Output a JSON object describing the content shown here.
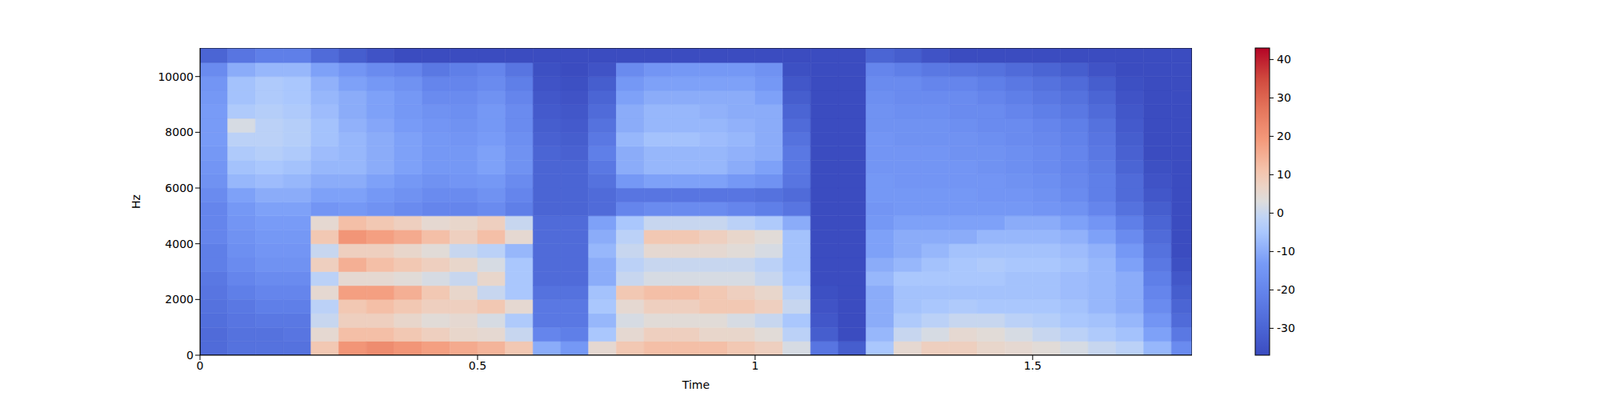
{
  "chart_data": {
    "type": "heatmap",
    "xlabel": "Time",
    "ylabel": "Hz",
    "xlim": [
      0,
      1.787
    ],
    "ylim": [
      0,
      11025
    ],
    "xticks": [
      0,
      0.5,
      1,
      1.5
    ],
    "yticks": [
      0,
      2000,
      4000,
      6000,
      8000,
      10000
    ],
    "time_bins": [
      0,
      0.05,
      0.1,
      0.15,
      0.2,
      0.25,
      0.3,
      0.35,
      0.4,
      0.45,
      0.5,
      0.55,
      0.6,
      0.65,
      0.7,
      0.75,
      0.8,
      0.85,
      0.9,
      0.95,
      1.0,
      1.05,
      1.1,
      1.15,
      1.2,
      1.25,
      1.3,
      1.35,
      1.4,
      1.45,
      1.5,
      1.55,
      1.6,
      1.65,
      1.7,
      1.75,
      1.787
    ],
    "freq_bins": [
      0,
      500,
      1000,
      1500,
      2000,
      2500,
      3000,
      3500,
      4000,
      4500,
      5000,
      5500,
      6000,
      6500,
      7000,
      7500,
      8000,
      8500,
      9000,
      9500,
      10000,
      10500,
      11025
    ],
    "cells": [
      [
        -28,
        -28,
        -27,
        -26,
        -25,
        -24,
        -22,
        -22,
        -20,
        -20,
        -20,
        -18,
        -16,
        -15,
        -14,
        -13,
        -13,
        -13,
        -14,
        -15,
        -18,
        -30
      ],
      [
        -26,
        -26,
        -25,
        -24,
        -22,
        -20,
        -18,
        -17,
        -16,
        -15,
        -14,
        -12,
        -8,
        -6,
        -4,
        -2,
        2,
        -4,
        -6,
        -6,
        -10,
        -25
      ],
      [
        -26,
        -26,
        -24,
        -22,
        -20,
        -18,
        -16,
        -15,
        -14,
        -13,
        -12,
        -10,
        -7,
        -5,
        -3,
        -2,
        -2,
        -3,
        -4,
        -4,
        -8,
        -22
      ],
      [
        -26,
        -25,
        -24,
        -22,
        -20,
        -18,
        -16,
        -15,
        -14,
        -13,
        -12,
        -10,
        -8,
        -6,
        -4,
        -3,
        -3,
        -4,
        -5,
        -5,
        -8,
        -22
      ],
      [
        10,
        5,
        0,
        -2,
        5,
        -2,
        8,
        0,
        10,
        5,
        -15,
        -12,
        -10,
        -8,
        -7,
        -6,
        -6,
        -7,
        -8,
        -9,
        -12,
        -28
      ],
      [
        20,
        12,
        8,
        10,
        18,
        5,
        15,
        8,
        20,
        12,
        -14,
        -12,
        -10,
        -8,
        -8,
        -8,
        -9,
        -10,
        -10,
        -12,
        -15,
        -32
      ],
      [
        22,
        12,
        8,
        12,
        18,
        5,
        12,
        8,
        18,
        10,
        -16,
        -14,
        -12,
        -10,
        -10,
        -10,
        -11,
        -12,
        -12,
        -14,
        -18,
        -35
      ],
      [
        20,
        10,
        6,
        10,
        15,
        4,
        10,
        6,
        16,
        8,
        -18,
        -16,
        -14,
        -12,
        -12,
        -12,
        -13,
        -14,
        -14,
        -16,
        -20,
        -37
      ],
      [
        18,
        8,
        4,
        8,
        10,
        2,
        8,
        4,
        12,
        5,
        -20,
        -18,
        -16,
        -14,
        -14,
        -14,
        -15,
        -16,
        -18,
        -20,
        -24,
        -37
      ],
      [
        16,
        6,
        5,
        8,
        6,
        0,
        6,
        0,
        8,
        6,
        -20,
        -18,
        -15,
        -14,
        -14,
        -15,
        -16,
        -17,
        -18,
        -20,
        -22,
        -37
      ],
      [
        14,
        5,
        2,
        10,
        0,
        6,
        2,
        -2,
        12,
        8,
        -18,
        -16,
        -14,
        -12,
        -12,
        -13,
        -14,
        -14,
        -16,
        -18,
        -20,
        -37
      ],
      [
        10,
        0,
        -4,
        5,
        -5,
        -5,
        -5,
        -8,
        5,
        0,
        -22,
        -20,
        -18,
        -16,
        -16,
        -17,
        -18,
        -18,
        -20,
        -22,
        -25,
        -37
      ],
      [
        -10,
        -20,
        -24,
        -24,
        -26,
        -28,
        -28,
        -28,
        -28,
        -28,
        -30,
        -30,
        -30,
        -30,
        -30,
        -31,
        -32,
        -33,
        -34,
        -35,
        -36,
        -37
      ],
      [
        -14,
        -22,
        -24,
        -24,
        -26,
        -28,
        -28,
        -28,
        -28,
        -28,
        -30,
        -30,
        -30,
        -30,
        -31,
        -32,
        -33,
        -34,
        -35,
        -36,
        -37,
        -37
      ],
      [
        5,
        -5,
        -8,
        -5,
        -6,
        -10,
        -10,
        -8,
        -10,
        -12,
        -28,
        -28,
        -26,
        -24,
        -22,
        -24,
        -26,
        -28,
        -30,
        -32,
        -35,
        -37
      ],
      [
        10,
        5,
        2,
        5,
        10,
        0,
        -2,
        0,
        -2,
        -5,
        -20,
        -25,
        -14,
        -10,
        -10,
        -8,
        -10,
        -10,
        -12,
        -14,
        -18,
        -37
      ],
      [
        12,
        8,
        4,
        8,
        12,
        2,
        0,
        5,
        10,
        0,
        -18,
        -25,
        -12,
        -8,
        -8,
        -6,
        -8,
        -8,
        -10,
        -12,
        -15,
        -37
      ],
      [
        12,
        8,
        4,
        8,
        12,
        2,
        0,
        5,
        10,
        0,
        -18,
        -25,
        -12,
        -8,
        -8,
        -6,
        -8,
        -8,
        -10,
        -12,
        -14,
        -37
      ],
      [
        12,
        6,
        4,
        10,
        10,
        2,
        0,
        5,
        8,
        0,
        -18,
        -25,
        -12,
        -8,
        -8,
        -7,
        -8,
        -9,
        -10,
        -12,
        -14,
        -37
      ],
      [
        10,
        6,
        2,
        10,
        8,
        2,
        0,
        4,
        6,
        -2,
        -20,
        -25,
        -14,
        -10,
        -9,
        -8,
        -9,
        -10,
        -10,
        -12,
        -14,
        -37
      ],
      [
        8,
        4,
        0,
        8,
        6,
        0,
        -2,
        2,
        4,
        -4,
        -22,
        -26,
        -16,
        -12,
        -10,
        -10,
        -10,
        -10,
        -12,
        -14,
        -16,
        -37
      ],
      [
        2,
        -2,
        -5,
        0,
        -2,
        -5,
        -6,
        -6,
        -6,
        -10,
        -25,
        -28,
        -25,
        -24,
        -24,
        -26,
        -28,
        -30,
        -32,
        -34,
        -36,
        -37
      ],
      [
        -25,
        -32,
        -34,
        -35,
        -36,
        -37,
        -37,
        -37,
        -37,
        -37,
        -37,
        -37,
        -37,
        -37,
        -37,
        -37,
        -37,
        -37,
        -37,
        -37,
        -37,
        -37
      ],
      [
        -32,
        -37,
        -37,
        -37,
        -37,
        -37,
        -37,
        -37,
        -37,
        -37,
        -37,
        -37,
        -37,
        -37,
        -37,
        -37,
        -37,
        -37,
        -37,
        -37,
        -37,
        -37
      ],
      [
        -5,
        -8,
        -10,
        -10,
        -10,
        -8,
        -10,
        -12,
        -12,
        -14,
        -15,
        -14,
        -14,
        -15,
        -15,
        -15,
        -16,
        -16,
        -17,
        -18,
        -20,
        -30
      ],
      [
        5,
        0,
        -4,
        -6,
        -6,
        -5,
        -8,
        -10,
        -10,
        -12,
        -14,
        -14,
        -15,
        -15,
        -15,
        -16,
        -16,
        -17,
        -18,
        -18,
        -22,
        -32
      ],
      [
        8,
        2,
        -2,
        -5,
        -6,
        -5,
        -6,
        -8,
        -10,
        -12,
        -14,
        -14,
        -15,
        -15,
        -15,
        -16,
        -16,
        -17,
        -18,
        -20,
        -24,
        -35
      ],
      [
        8,
        5,
        0,
        -4,
        -6,
        -5,
        -5,
        -6,
        -10,
        -12,
        -14,
        -14,
        -15,
        -15,
        -16,
        -16,
        -17,
        -18,
        -18,
        -20,
        -25,
        -37
      ],
      [
        6,
        4,
        0,
        -5,
        -6,
        -5,
        -4,
        -6,
        -8,
        -12,
        -14,
        -15,
        -15,
        -16,
        -16,
        -17,
        -18,
        -18,
        -20,
        -22,
        -26,
        -37
      ],
      [
        5,
        2,
        -2,
        -5,
        -6,
        -6,
        -5,
        -6,
        -8,
        -10,
        -14,
        -15,
        -16,
        -17,
        -17,
        -18,
        -18,
        -20,
        -22,
        -24,
        -28,
        -37
      ],
      [
        4,
        0,
        -3,
        -5,
        -6,
        -6,
        -5,
        -6,
        -8,
        -10,
        -15,
        -16,
        -17,
        -18,
        -18,
        -19,
        -20,
        -22,
        -24,
        -26,
        -30,
        -37
      ],
      [
        2,
        -2,
        -5,
        -6,
        -7,
        -7,
        -6,
        -7,
        -9,
        -12,
        -16,
        -18,
        -19,
        -20,
        -20,
        -21,
        -22,
        -24,
        -26,
        -28,
        -32,
        -37
      ],
      [
        0,
        -4,
        -6,
        -8,
        -8,
        -8,
        -8,
        -9,
        -12,
        -15,
        -20,
        -22,
        -22,
        -23,
        -24,
        -25,
        -26,
        -28,
        -30,
        -32,
        -35,
        -37
      ],
      [
        -2,
        -6,
        -8,
        -10,
        -10,
        -10,
        -12,
        -14,
        -18,
        -22,
        -26,
        -28,
        -28,
        -30,
        -31,
        -32,
        -33,
        -34,
        -35,
        -36,
        -37,
        -37
      ],
      [
        -8,
        -12,
        -15,
        -18,
        -20,
        -22,
        -24,
        -26,
        -28,
        -30,
        -32,
        -34,
        -35,
        -36,
        -37,
        -37,
        -37,
        -37,
        -37,
        -37,
        -37,
        -37
      ],
      [
        -18,
        -24,
        -28,
        -30,
        -32,
        -34,
        -36,
        -37,
        -37,
        -37,
        -37,
        -37,
        -37,
        -37,
        -37,
        -37,
        -37,
        -37,
        -37,
        -37,
        -37,
        -37
      ]
    ],
    "color_range": [
      -37,
      43
    ],
    "color_ticks": [
      -30,
      -20,
      -10,
      0,
      10,
      20,
      30,
      40
    ]
  }
}
